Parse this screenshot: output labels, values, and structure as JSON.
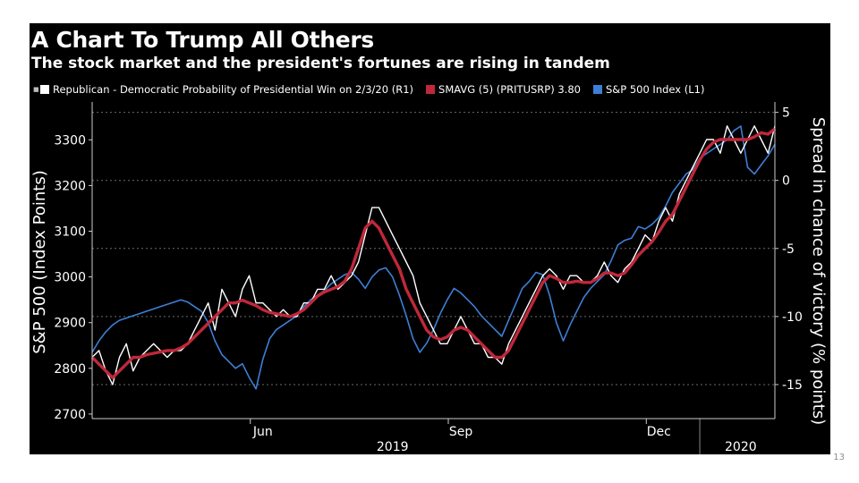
{
  "header": {
    "title": "A Chart To Trump All Others",
    "subtitle": "The stock market and the president's fortunes are rising in tandem"
  },
  "legend": {
    "icon": "bullet-icon",
    "items": [
      {
        "label": "Republican - Democratic Probability of Presidential Win on 2/3/20 (R1)",
        "color": "#ffffff"
      },
      {
        "label": "SMAVG (5) (PRITUSRP) 3.80",
        "color": "#c0283a"
      },
      {
        "label": "S&P 500 Index  (L1)",
        "color": "#3d7fd6"
      }
    ]
  },
  "footer": {
    "page_number": "13"
  },
  "chart_data": {
    "type": "line",
    "title": "A Chart To Trump All Others",
    "subtitle": "The stock market and the president's fortunes are rising in tandem",
    "x_index_range": [
      0,
      100
    ],
    "x_ticks": [
      {
        "label": "Jun",
        "at": 25
      },
      {
        "label": "Sep",
        "at": 54
      },
      {
        "label": "Dec",
        "at": 83
      }
    ],
    "x_year_labels": [
      {
        "label": "2019",
        "at": 44
      },
      {
        "label": "2020",
        "at": 95
      }
    ],
    "year_divider_at": 89,
    "left_axis": {
      "label": "S&P 500 (Index Points)",
      "range": [
        2690,
        3375
      ],
      "ticks": [
        2700,
        2800,
        2900,
        3000,
        3100,
        3200,
        3300
      ]
    },
    "right_axis": {
      "label": "Spread in chance of victory (% points)",
      "range": [
        -17.5,
        5.5
      ],
      "ticks": [
        5,
        0,
        -5,
        -10,
        -15
      ]
    },
    "series": [
      {
        "name": "S&P 500 Index  (L1)",
        "axis": "left",
        "color": "#3d7fd6",
        "values": [
          2835,
          2860,
          2880,
          2895,
          2905,
          2910,
          2915,
          2920,
          2925,
          2930,
          2935,
          2940,
          2945,
          2950,
          2945,
          2935,
          2925,
          2900,
          2860,
          2830,
          2815,
          2800,
          2810,
          2780,
          2755,
          2820,
          2865,
          2885,
          2895,
          2905,
          2915,
          2935,
          2950,
          2960,
          2970,
          2985,
          2995,
          3005,
          3010,
          2995,
          2975,
          3000,
          3015,
          3020,
          3000,
          2960,
          2915,
          2865,
          2835,
          2855,
          2885,
          2920,
          2950,
          2975,
          2965,
          2950,
          2935,
          2915,
          2900,
          2885,
          2870,
          2905,
          2940,
          2975,
          2990,
          3010,
          3005,
          2960,
          2900,
          2860,
          2895,
          2925,
          2955,
          2975,
          2990,
          3005,
          3035,
          3070,
          3080,
          3085,
          3110,
          3105,
          3115,
          3130,
          3155,
          3185,
          3205,
          3225,
          3235,
          3260,
          3270,
          3280,
          3290,
          3300,
          3320,
          3330,
          3240,
          3225,
          3245,
          3265,
          3290
        ]
      },
      {
        "name": "Republican - Democratic Probability of Presidential Win on 2/3/20 (R1)",
        "axis": "right",
        "color": "#ffffff",
        "values": [
          -13,
          -12.5,
          -14,
          -15,
          -13,
          -12,
          -14,
          -13,
          -12.5,
          -12,
          -12.5,
          -13,
          -12.5,
          -12.5,
          -12,
          -11,
          -10,
          -9,
          -11,
          -8,
          -9,
          -10,
          -8,
          -7,
          -9,
          -9,
          -9.5,
          -10,
          -9.5,
          -10,
          -10,
          -9,
          -9,
          -8,
          -8,
          -7,
          -8,
          -7.5,
          -7,
          -6,
          -4,
          -2,
          -2,
          -3,
          -4,
          -5,
          -6,
          -7,
          -9,
          -10,
          -11,
          -12,
          -12,
          -11,
          -10,
          -11,
          -12,
          -12,
          -13,
          -13,
          -13.5,
          -12,
          -11,
          -10,
          -9,
          -8,
          -7,
          -6.5,
          -7,
          -8,
          -7,
          -7,
          -7.5,
          -7.5,
          -7,
          -6,
          -7,
          -7.5,
          -6.5,
          -6,
          -5,
          -4,
          -4.5,
          -3,
          -2,
          -3,
          -1,
          0,
          1,
          2,
          3,
          3,
          2,
          4,
          3,
          2,
          3,
          4,
          3,
          2,
          4
        ]
      },
      {
        "name": "SMAVG (5) (PRITUSRP) 3.80",
        "axis": "right",
        "color": "#c0283a",
        "values": [
          -13,
          -13.5,
          -14,
          -14.5,
          -14,
          -13.5,
          -13,
          -13,
          -12.8,
          -12.7,
          -12.6,
          -12.5,
          -12.5,
          -12.3,
          -12,
          -11.5,
          -11,
          -10.5,
          -10,
          -9.5,
          -9,
          -9,
          -8.8,
          -9,
          -9.2,
          -9.5,
          -9.7,
          -9.8,
          -9.9,
          -10,
          -9.8,
          -9.5,
          -9,
          -8.5,
          -8.2,
          -8,
          -7.8,
          -7.4,
          -6.5,
          -5,
          -3.5,
          -3,
          -3.5,
          -4.5,
          -5.5,
          -6.5,
          -8,
          -9,
          -10,
          -11,
          -11.5,
          -11.7,
          -11.5,
          -11,
          -10.8,
          -11,
          -11.5,
          -12,
          -12.5,
          -13,
          -13,
          -12.5,
          -11.5,
          -10.5,
          -9.5,
          -8.5,
          -7.5,
          -7,
          -7.2,
          -7.5,
          -7.5,
          -7.4,
          -7.5,
          -7.5,
          -7.2,
          -6.8,
          -6.8,
          -7,
          -6.8,
          -6.2,
          -5.5,
          -5,
          -4.5,
          -3.8,
          -3,
          -2.5,
          -1.5,
          -0.5,
          0.5,
          1.5,
          2.3,
          2.8,
          3,
          3,
          3,
          3,
          3,
          3.2,
          3.5,
          3.4,
          3.8
        ]
      }
    ]
  }
}
